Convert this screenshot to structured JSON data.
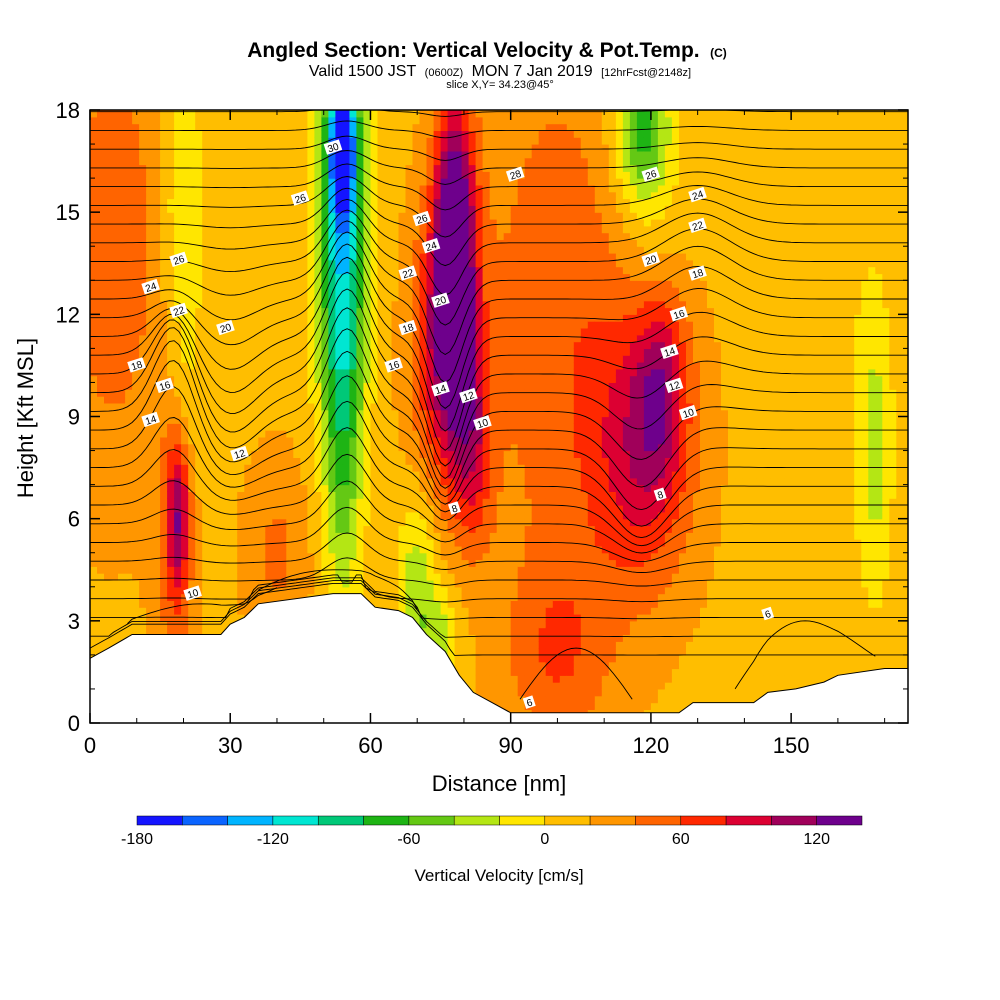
{
  "title": {
    "main": "Angled Section: Vertical Velocity & Pot.Temp.",
    "copyright": "(C)",
    "valid_prefix": "Valid 1500 JST",
    "valid_utc": "(0600Z)",
    "valid_date": "MON 7 Jan 2019",
    "forecast": "[12hrFcst@2148z]",
    "slice": "slice X,Y= 34.23@45°"
  },
  "chart_data": {
    "type": "heatmap",
    "title": "Angled Section: Vertical Velocity & Pot.Temp.",
    "xlabel": "Distance [nm]",
    "ylabel": "Height [Kft MSL]",
    "xlim": [
      0,
      175
    ],
    "ylim": [
      0,
      18
    ],
    "xticks": [
      0,
      30,
      60,
      90,
      120,
      150
    ],
    "yticks": [
      0,
      3,
      6,
      9,
      12,
      15,
      18
    ],
    "colorbar": {
      "title": "Vertical Velocity [cm/s]",
      "min": -180,
      "max": 140,
      "step": 20,
      "ticks": [
        -180,
        -120,
        -60,
        0,
        60,
        120
      ],
      "colors": [
        "#1414ff",
        "#0a64ff",
        "#00b4ff",
        "#00e6d2",
        "#00c878",
        "#1eb414",
        "#64c814",
        "#b4e614",
        "#ffe600",
        "#ffbe00",
        "#ff9600",
        "#ff6400",
        "#ff2800",
        "#dc0032",
        "#a0005a",
        "#6e008c"
      ]
    },
    "terrain": [
      [
        0,
        1.9
      ],
      [
        4,
        2.2
      ],
      [
        9,
        2.6
      ],
      [
        28,
        2.6
      ],
      [
        30,
        2.9
      ],
      [
        33,
        3.1
      ],
      [
        36,
        3.5
      ],
      [
        52,
        3.8
      ],
      [
        58,
        3.8
      ],
      [
        61,
        3.4
      ],
      [
        66,
        3.3
      ],
      [
        69,
        3.1
      ],
      [
        72,
        2.6
      ],
      [
        76,
        2.1
      ],
      [
        79,
        1.4
      ],
      [
        82,
        0.9
      ],
      [
        86,
        0.6
      ],
      [
        90,
        0.3
      ],
      [
        126,
        0.3
      ],
      [
        129,
        0.6
      ],
      [
        142,
        0.6
      ],
      [
        145,
        0.9
      ],
      [
        151,
        1.0
      ],
      [
        157,
        1.2
      ],
      [
        160,
        1.4
      ],
      [
        170,
        1.6
      ],
      [
        175,
        1.6
      ]
    ],
    "velocity_features": [
      {
        "x": 54,
        "y": 15,
        "value": -100,
        "sx": 4,
        "sy": 4
      },
      {
        "x": 54,
        "y": 9,
        "value": -70,
        "sx": 3,
        "sy": 4
      },
      {
        "x": 54,
        "y": 17,
        "value": -140,
        "sx": 2,
        "sy": 1.5
      },
      {
        "x": 70,
        "y": 4,
        "value": -50,
        "sx": 3,
        "sy": 2
      },
      {
        "x": 75,
        "y": 2.5,
        "value": -40,
        "sx": 3,
        "sy": 1
      },
      {
        "x": 78,
        "y": 14,
        "value": 140,
        "sx": 3,
        "sy": 3
      },
      {
        "x": 76,
        "y": 11,
        "value": 80,
        "sx": 5,
        "sy": 3
      },
      {
        "x": 82,
        "y": 8,
        "value": 55,
        "sx": 3,
        "sy": 2
      },
      {
        "x": 19,
        "y": 6.2,
        "value": 70,
        "sx": 1.6,
        "sy": 1.6
      },
      {
        "x": 18,
        "y": 5.5,
        "value": 45,
        "sx": 3,
        "sy": 3
      },
      {
        "x": 20,
        "y": 15,
        "value": -40,
        "sx": 3,
        "sy": 3
      },
      {
        "x": 20,
        "y": 9,
        "value": -20,
        "sx": 3,
        "sy": 2
      },
      {
        "x": 118,
        "y": 8,
        "value": 70,
        "sx": 8,
        "sy": 3
      },
      {
        "x": 122,
        "y": 10,
        "value": 60,
        "sx": 4,
        "sy": 2
      },
      {
        "x": 118,
        "y": 17.5,
        "value": -80,
        "sx": 4,
        "sy": 1.5
      },
      {
        "x": 120,
        "y": 15,
        "value": -20,
        "sx": 5,
        "sy": 3
      },
      {
        "x": 168,
        "y": 8,
        "value": -40,
        "sx": 2.5,
        "sy": 3
      },
      {
        "x": 160,
        "y": 12,
        "value": -10,
        "sx": 8,
        "sy": 6
      },
      {
        "x": 100,
        "y": 12,
        "value": 40,
        "sx": 12,
        "sy": 6
      },
      {
        "x": 100,
        "y": 2,
        "value": 40,
        "sx": 8,
        "sy": 2
      },
      {
        "x": 5,
        "y": 14,
        "value": 40,
        "sx": 8,
        "sy": 5
      },
      {
        "x": 40,
        "y": 5,
        "value": 30,
        "sx": 5,
        "sy": 2
      },
      {
        "x": 140,
        "y": 4,
        "value": 0,
        "sx": 10,
        "sy": 3
      }
    ],
    "theta_contours": {
      "levels": [
        6,
        8,
        10,
        12,
        14,
        16,
        18,
        20,
        22,
        24,
        26,
        28,
        30
      ],
      "labels": [
        {
          "text": "30",
          "x": 52,
          "y": 16.9
        },
        {
          "text": "28",
          "x": 91,
          "y": 16.1
        },
        {
          "text": "26",
          "x": 120,
          "y": 16.1
        },
        {
          "text": "26",
          "x": 45,
          "y": 15.4
        },
        {
          "text": "26",
          "x": 71,
          "y": 14.8
        },
        {
          "text": "24",
          "x": 73,
          "y": 14.0
        },
        {
          "text": "24",
          "x": 130,
          "y": 15.5
        },
        {
          "text": "22",
          "x": 130,
          "y": 14.6
        },
        {
          "text": "26",
          "x": 19,
          "y": 13.6
        },
        {
          "text": "20",
          "x": 120,
          "y": 13.6
        },
        {
          "text": "22",
          "x": 68,
          "y": 13.2
        },
        {
          "text": "24",
          "x": 13,
          "y": 12.8
        },
        {
          "text": "18",
          "x": 130,
          "y": 13.2
        },
        {
          "text": "20",
          "x": 75,
          "y": 12.4
        },
        {
          "text": "22",
          "x": 19,
          "y": 12.1
        },
        {
          "text": "16",
          "x": 126,
          "y": 12.0
        },
        {
          "text": "20",
          "x": 29,
          "y": 11.6
        },
        {
          "text": "18",
          "x": 68,
          "y": 11.6
        },
        {
          "text": "14",
          "x": 124,
          "y": 10.9
        },
        {
          "text": "18",
          "x": 10,
          "y": 10.5
        },
        {
          "text": "16",
          "x": 65,
          "y": 10.5
        },
        {
          "text": "16",
          "x": 16,
          "y": 9.9
        },
        {
          "text": "12",
          "x": 125,
          "y": 9.9
        },
        {
          "text": "14",
          "x": 75,
          "y": 9.8
        },
        {
          "text": "12",
          "x": 81,
          "y": 9.6
        },
        {
          "text": "10",
          "x": 128,
          "y": 9.1
        },
        {
          "text": "14",
          "x": 13,
          "y": 8.9
        },
        {
          "text": "10",
          "x": 84,
          "y": 8.8
        },
        {
          "text": "12",
          "x": 32,
          "y": 7.9
        },
        {
          "text": "8",
          "x": 122,
          "y": 6.7
        },
        {
          "text": "8",
          "x": 78,
          "y": 6.3
        },
        {
          "text": "10",
          "x": 22,
          "y": 3.8
        },
        {
          "text": "6",
          "x": 145,
          "y": 3.2
        },
        {
          "text": "6",
          "x": 94,
          "y": 0.6
        }
      ]
    }
  }
}
